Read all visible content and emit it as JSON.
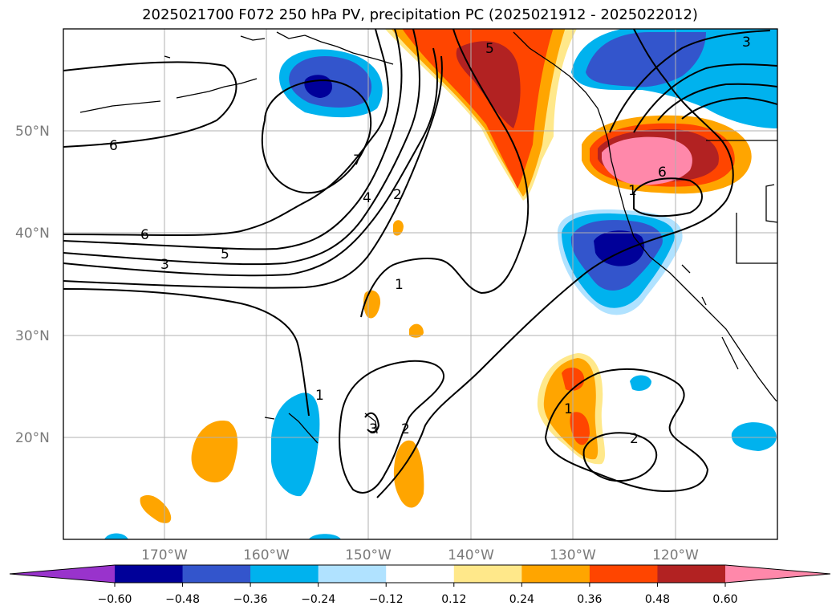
{
  "title": "2025021700 F072 250 hPa PV, precipitation PC (2025021912 - 2025022012)",
  "map": {
    "projection": "PlateCarree",
    "lon_range": [
      -180,
      -110
    ],
    "lat_range": [
      10,
      60
    ],
    "lat_labels": [
      "20°N",
      "30°N",
      "40°N",
      "50°N"
    ],
    "lon_labels": [
      "170°W",
      "160°W",
      "150°W",
      "140°W",
      "130°W",
      "120°W"
    ],
    "gridlines": true
  },
  "contour_labels": [
    "6",
    "6",
    "5",
    "3",
    "7",
    "4",
    "2",
    "1",
    "1",
    "1",
    "3",
    "2",
    "1",
    "2",
    "6",
    "5",
    "3"
  ],
  "colorbar": {
    "ticks": [
      "−0.60",
      "−0.48",
      "−0.36",
      "−0.24",
      "−0.12",
      "0.12",
      "0.24",
      "0.36",
      "0.48",
      "0.60"
    ],
    "colors": [
      "#9933cc",
      "#000099",
      "#3355cc",
      "#00b2ee",
      "#b0e2ff",
      "#ffffff",
      "#ffe88a",
      "#ffa500",
      "#ff4500",
      "#b22222",
      "#ff88aa"
    ],
    "extend": "both"
  }
}
